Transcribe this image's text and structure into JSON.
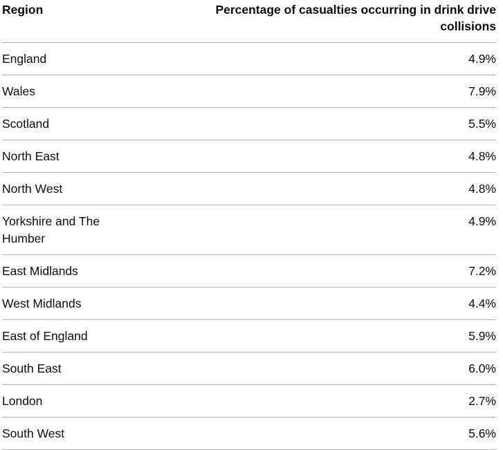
{
  "table": {
    "headers": {
      "region": "Region",
      "percentage": "Percentage of casualties occurring in drink drive collisions"
    },
    "rows": [
      {
        "region": "England",
        "value": "4.9%"
      },
      {
        "region": "Wales",
        "value": "7.9%"
      },
      {
        "region": "Scotland",
        "value": "5.5%"
      },
      {
        "region": "North East",
        "value": "4.8%"
      },
      {
        "region": "North West",
        "value": "4.8%"
      },
      {
        "region": "Yorkshire and The Humber",
        "value": "4.9%"
      },
      {
        "region": "East Midlands",
        "value": "7.2%"
      },
      {
        "region": "West Midlands",
        "value": "4.4%"
      },
      {
        "region": "East of England",
        "value": "5.9%"
      },
      {
        "region": "South East",
        "value": "6.0%"
      },
      {
        "region": "London",
        "value": "2.7%"
      },
      {
        "region": "South West",
        "value": "5.6%"
      }
    ]
  }
}
